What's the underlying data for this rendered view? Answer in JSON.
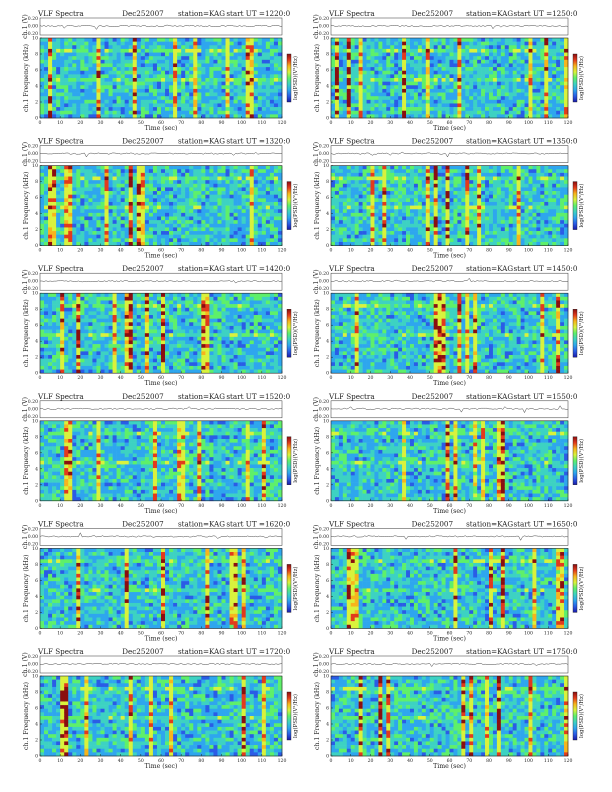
{
  "page": {
    "background": "#ffffff",
    "colormap": [
      "#1a1aa8",
      "#2a5ce6",
      "#2ea6ee",
      "#3dd2c2",
      "#5ef06a",
      "#d9f23c",
      "#f7b41c",
      "#e23a1c",
      "#8a0e10"
    ],
    "y_label_channel": "ch.1",
    "y_label_freq": "Frequency",
    "y_unit": "(kHz)",
    "volt_unit": "(V)",
    "x_label": "Time  (sec)",
    "colorbar_label": "log(PSD)(V²/Hz)",
    "volt_ticks": [
      "0.20",
      "0.00",
      "-0.20"
    ],
    "freq_ticks": [
      "0",
      "2",
      "4",
      "6",
      "8",
      "10"
    ],
    "time_ticks": [
      "0",
      "10",
      "20",
      "30",
      "40",
      "50",
      "60",
      "70",
      "80",
      "90",
      "100",
      "110",
      "120"
    ]
  },
  "chart_data": [
    {
      "type": "heatmap",
      "title": "VLF Spectra",
      "date": "Dec252007",
      "station": "station=KAG",
      "start": "start  UT  =1220:0",
      "xlim": [
        0,
        120
      ],
      "ylim": [
        0,
        10
      ]
    },
    {
      "type": "heatmap",
      "title": "VLF Spectra",
      "date": "Dec252007",
      "station": "station=KAG",
      "start": "start  UT  =1250:0",
      "xlim": [
        0,
        120
      ],
      "ylim": [
        0,
        10
      ]
    },
    {
      "type": "heatmap",
      "title": "VLF Spectra",
      "date": "Dec252007",
      "station": "station=KAG",
      "start": "start  UT  =1320:0",
      "xlim": [
        0,
        120
      ],
      "ylim": [
        0,
        10
      ]
    },
    {
      "type": "heatmap",
      "title": "VLF Spectra",
      "date": "Dec252007",
      "station": "station=KAG",
      "start": "start  UT  =1350:0",
      "xlim": [
        0,
        120
      ],
      "ylim": [
        0,
        10
      ]
    },
    {
      "type": "heatmap",
      "title": "VLF Spectra",
      "date": "Dec252007",
      "station": "station=KAG",
      "start": "start  UT  =1420:0",
      "xlim": [
        0,
        120
      ],
      "ylim": [
        0,
        10
      ]
    },
    {
      "type": "heatmap",
      "title": "VLF Spectra",
      "date": "Dec252007",
      "station": "station=KAG",
      "start": "start  UT  =1450:0",
      "xlim": [
        0,
        120
      ],
      "ylim": [
        0,
        10
      ]
    },
    {
      "type": "heatmap",
      "title": "VLF Spectra",
      "date": "Dec252007",
      "station": "station=KAG",
      "start": "start  UT  =1520:0",
      "xlim": [
        0,
        120
      ],
      "ylim": [
        0,
        10
      ]
    },
    {
      "type": "heatmap",
      "title": "VLF Spectra",
      "date": "Dec252007",
      "station": "station=KAG",
      "start": "start  UT  =1550:0",
      "xlim": [
        0,
        120
      ],
      "ylim": [
        0,
        10
      ]
    },
    {
      "type": "heatmap",
      "title": "VLF Spectra",
      "date": "Dec252007",
      "station": "station=KAG",
      "start": "start  UT  =1620:0",
      "xlim": [
        0,
        120
      ],
      "ylim": [
        0,
        10
      ]
    },
    {
      "type": "heatmap",
      "title": "VLF Spectra",
      "date": "Dec252007",
      "station": "station=KAG",
      "start": "start  UT  =1650:0",
      "xlim": [
        0,
        120
      ],
      "ylim": [
        0,
        10
      ]
    },
    {
      "type": "heatmap",
      "title": "VLF Spectra",
      "date": "Dec252007",
      "station": "station=KAG",
      "start": "start  UT  =1720:0",
      "xlim": [
        0,
        120
      ],
      "ylim": [
        0,
        10
      ]
    },
    {
      "type": "heatmap",
      "title": "VLF Spectra",
      "date": "Dec252007",
      "station": "station=KAG",
      "start": "start  UT  =1750:0",
      "xlim": [
        0,
        120
      ],
      "ylim": [
        0,
        10
      ]
    }
  ]
}
